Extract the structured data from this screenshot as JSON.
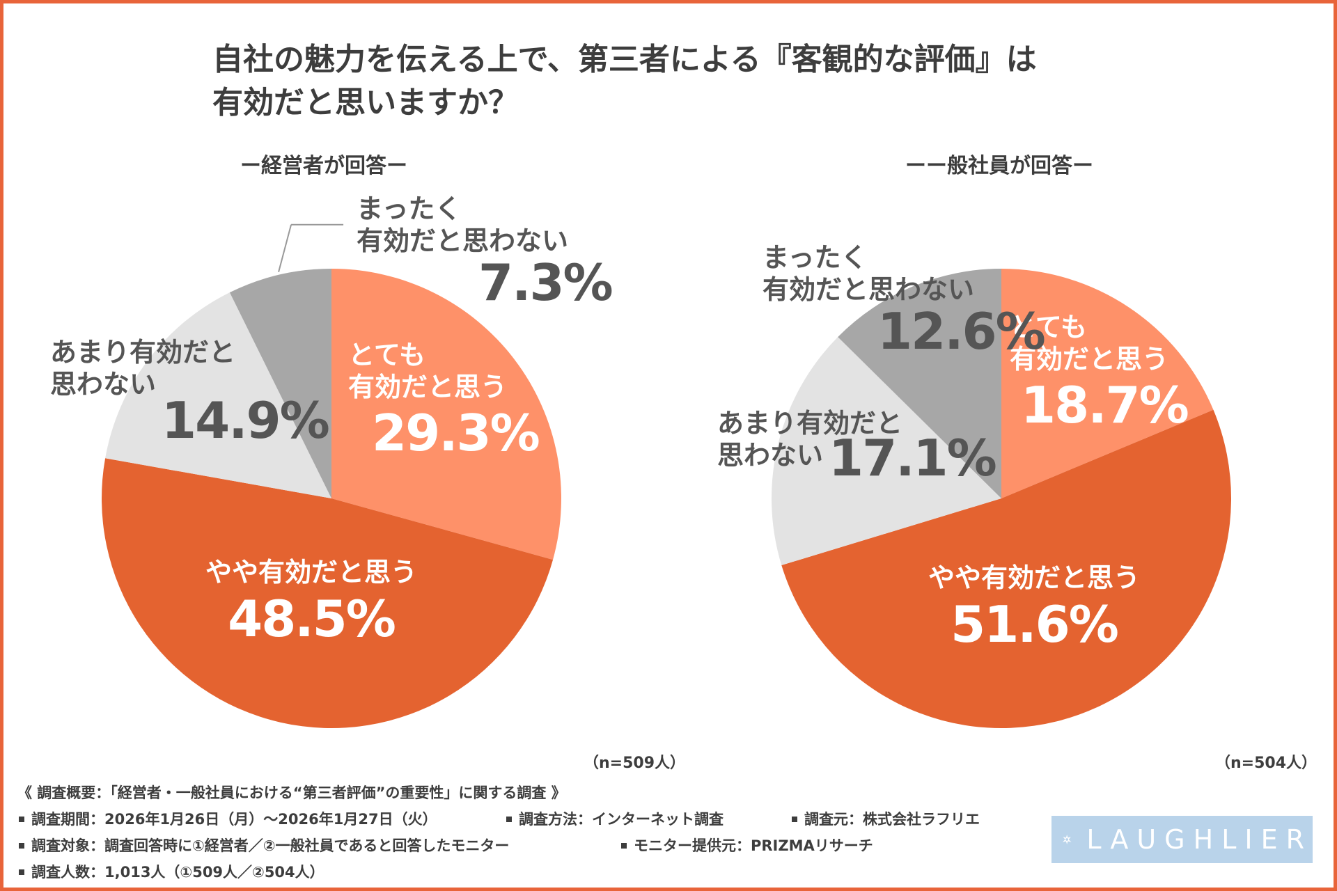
{
  "title_line1": "自社の魅力を伝える上で、第三者による『客観的な評価』は",
  "title_line2": "有効だと思いますか？",
  "colors": {
    "frame": "#e8643a",
    "very_effective": "#fe9169",
    "somewhat_effective": "#e46330",
    "not_very": "#e3e3e3",
    "not_at_all": "#a7a7a7"
  },
  "chart_data": [
    {
      "type": "pie",
      "title": "ー経営者が回答ー",
      "n_label": "（n=509人）",
      "slices": [
        {
          "label": "とても有効だと思う",
          "label_lines": [
            "とても",
            "有効だと思う"
          ],
          "value": 29.3,
          "pct": "29.3%"
        },
        {
          "label": "やや有効だと思う",
          "label_lines": [
            "やや有効だと思う"
          ],
          "value": 48.5,
          "pct": "48.5%"
        },
        {
          "label": "あまり有効だと思わない",
          "label_lines": [
            "あまり有効だと",
            "思わない"
          ],
          "value": 14.9,
          "pct": "14.9%"
        },
        {
          "label": "まったく有効だと思わない",
          "label_lines": [
            "まったく",
            "有効だと思わない"
          ],
          "value": 7.3,
          "pct": "7.3%"
        }
      ]
    },
    {
      "type": "pie",
      "title": "ーー般社員が回答ー",
      "n_label": "（n=504人）",
      "slices": [
        {
          "label": "とても有効だと思う",
          "label_lines": [
            "とても",
            "有効だと思う"
          ],
          "value": 18.7,
          "pct": "18.7%"
        },
        {
          "label": "やや有効だと思う",
          "label_lines": [
            "やや有効だと思う"
          ],
          "value": 51.6,
          "pct": "51.6%"
        },
        {
          "label": "あまり有効だと思わない",
          "label_lines": [
            "あまり有効だと",
            "思わない"
          ],
          "value": 17.1,
          "pct": "17.1%"
        },
        {
          "label": "まったく有効だと思わない",
          "label_lines": [
            "まったく",
            "有効だと思わない"
          ],
          "value": 12.6,
          "pct": "12.6%"
        }
      ]
    }
  ],
  "footer": {
    "summary": "《 調査概要：「経営者・一般社員における“第三者評価”の重要性」に関する調査 》",
    "period": "調査期間：2026年1月26日（月）〜2026年1月27日（火）",
    "method": "調査方法：インターネット調査",
    "source": "調査元：株式会社ラフリエ",
    "target": "調査対象：調査回答時に①経営者／②一般社員であると回答したモニター",
    "provider": "モニター提供元：PRIZMAリサーチ",
    "count": "調査人数：1,013人（①509人／②504人）"
  },
  "logo_text": "LAUGHLIER"
}
